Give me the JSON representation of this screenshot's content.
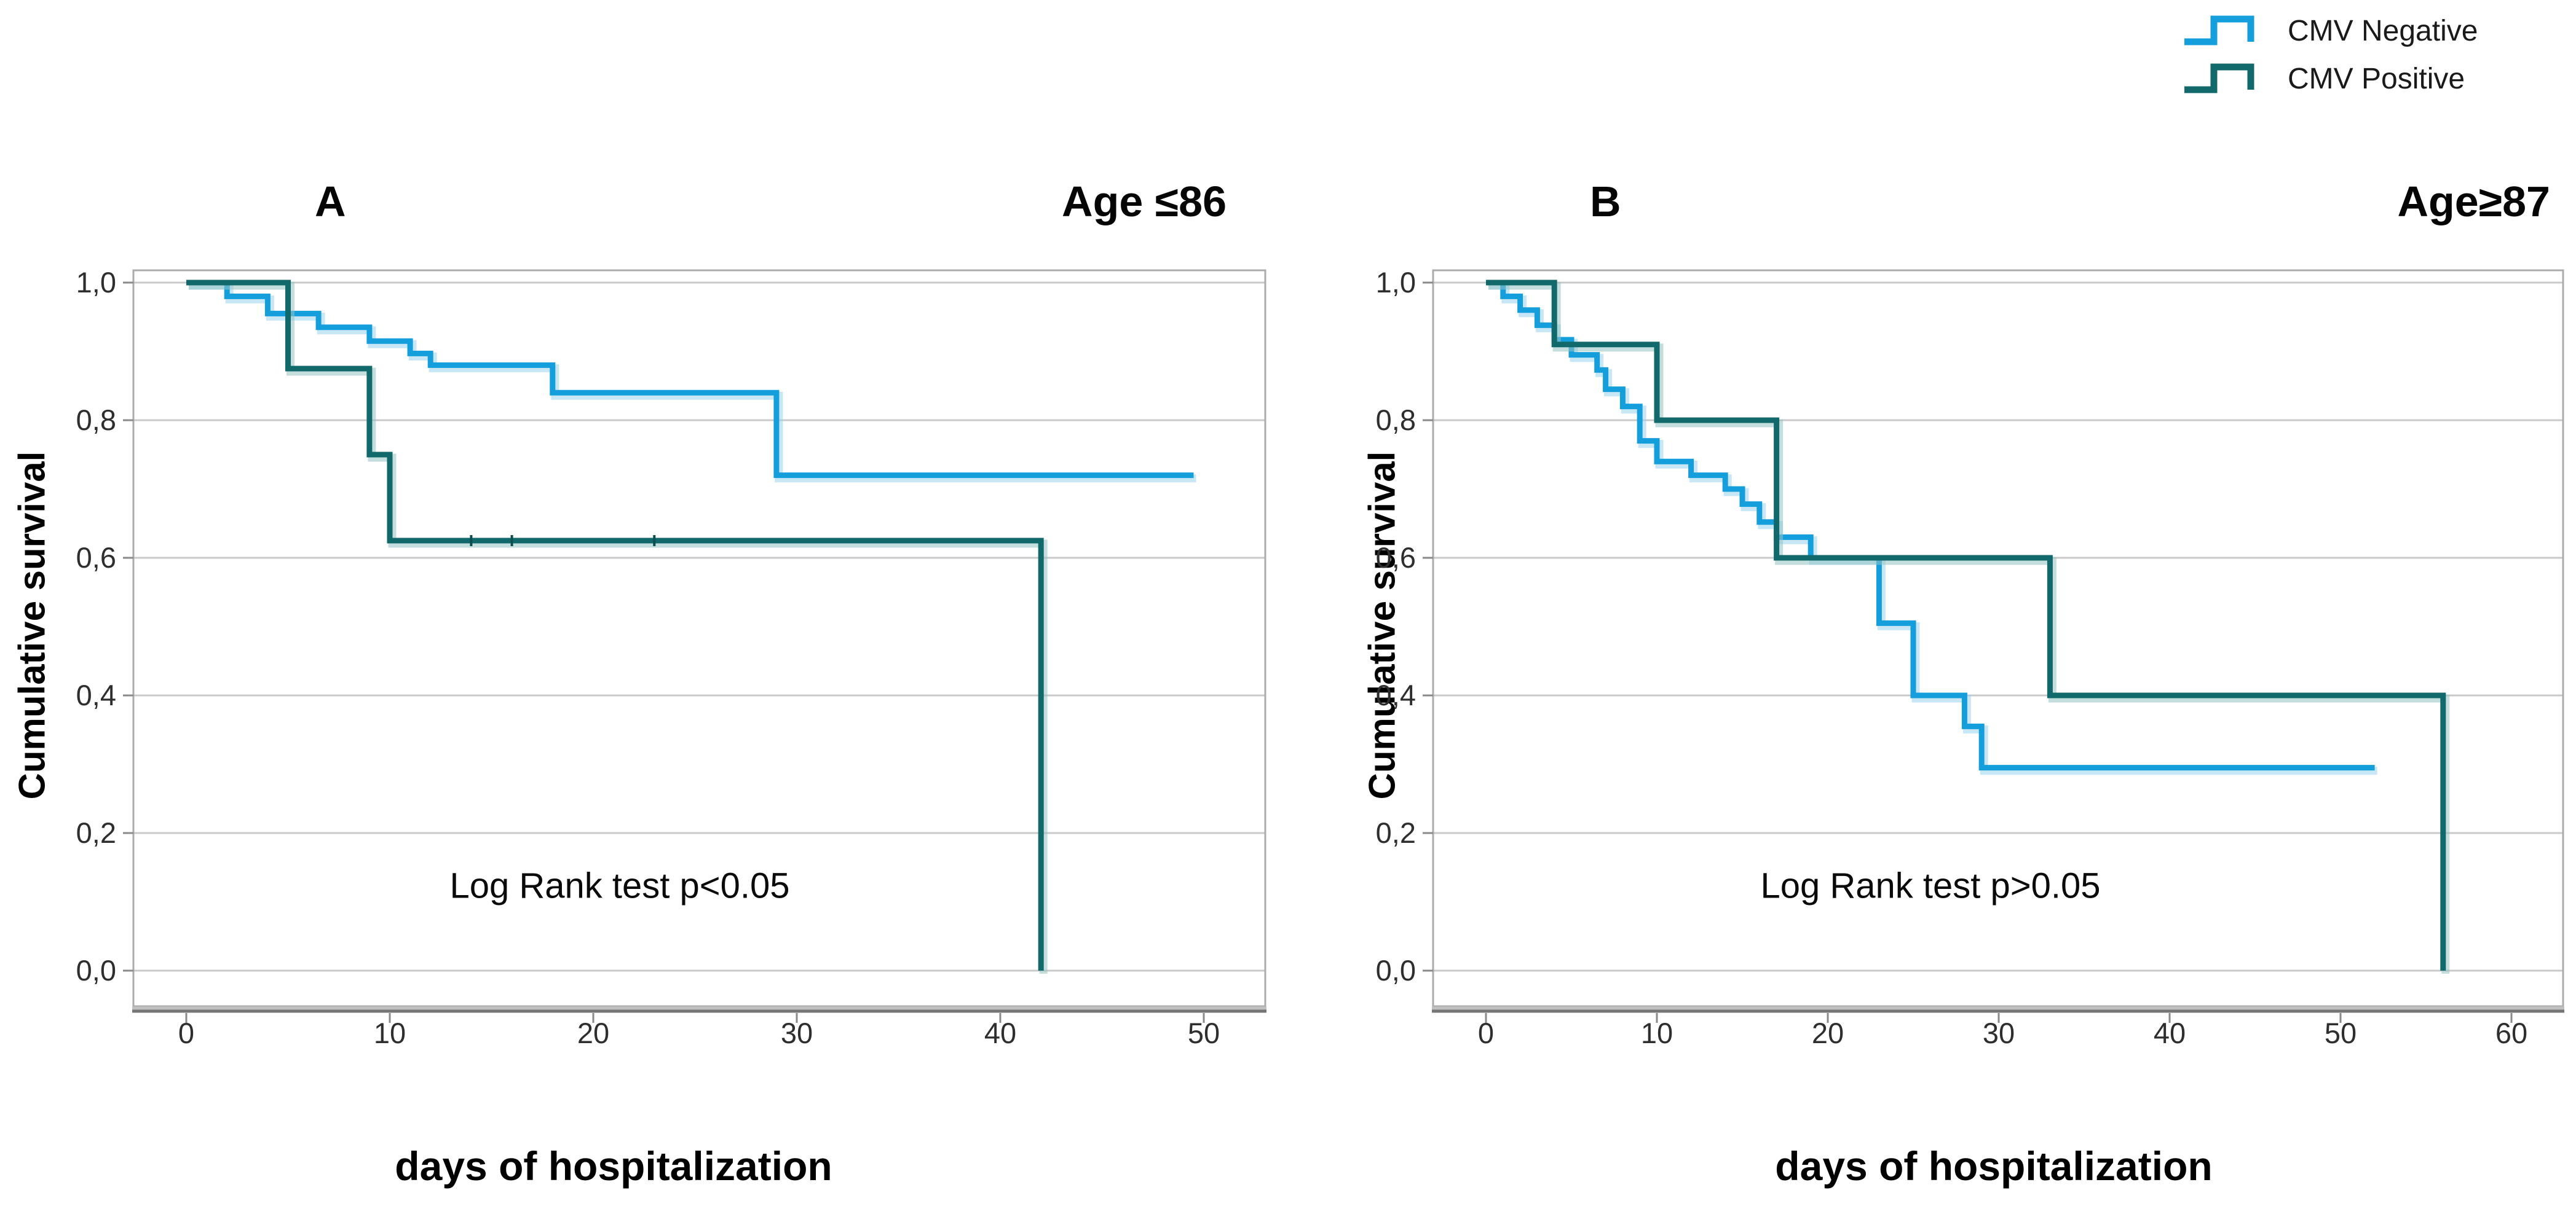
{
  "legend": {
    "items": [
      {
        "label": "CMV Negative",
        "color": "#149EDC",
        "halo": "#9bd3ee"
      },
      {
        "label": "CMV Positive",
        "color": "#11696B",
        "halo": "#93c2c3"
      }
    ]
  },
  "chart_data": [
    {
      "type": "line",
      "step": true,
      "panel_letter": "A",
      "age_label": "Age ≤86",
      "annotation": "Log Rank test p<0.05",
      "xlabel": "days of hospitalization",
      "ylabel": "Cumulative survival",
      "x_ticks": [
        0,
        10,
        20,
        30,
        40,
        50
      ],
      "y_ticks": [
        {
          "label": "1,0",
          "value": 1.0
        },
        {
          "label": "0,8",
          "value": 0.8
        },
        {
          "label": "0,6",
          "value": 0.6
        },
        {
          "label": "0,4",
          "value": 0.4
        },
        {
          "label": "0,2",
          "value": 0.2
        },
        {
          "label": "0,0",
          "value": 0.0
        }
      ],
      "xlim": [
        0,
        50
      ],
      "ylim": [
        0,
        1
      ],
      "grid": "horizontal",
      "series": [
        {
          "name": "CMV Negative",
          "color": "#149EDC",
          "halo": "#9bd3ee",
          "points": [
            [
              0,
              1.0
            ],
            [
              2,
              1.0
            ],
            [
              2,
              0.98
            ],
            [
              4,
              0.98
            ],
            [
              4,
              0.955
            ],
            [
              6.5,
              0.955
            ],
            [
              6.5,
              0.935
            ],
            [
              9,
              0.935
            ],
            [
              9,
              0.915
            ],
            [
              11,
              0.915
            ],
            [
              11,
              0.897
            ],
            [
              12,
              0.897
            ],
            [
              12,
              0.88
            ],
            [
              18,
              0.88
            ],
            [
              18,
              0.84
            ],
            [
              29,
              0.84
            ],
            [
              29,
              0.72
            ],
            [
              49.5,
              0.72
            ]
          ]
        },
        {
          "name": "CMV Positive",
          "color": "#11696B",
          "halo": "#93c2c3",
          "points": [
            [
              0,
              1.0
            ],
            [
              5,
              1.0
            ],
            [
              5,
              0.875
            ],
            [
              9,
              0.875
            ],
            [
              9,
              0.75
            ],
            [
              10,
              0.75
            ],
            [
              10,
              0.625
            ],
            [
              42,
              0.625
            ],
            [
              42,
              0.0
            ]
          ],
          "censor_marks": [
            14,
            16,
            23
          ],
          "censor_value": 0.625
        }
      ]
    },
    {
      "type": "line",
      "step": true,
      "panel_letter": "B",
      "age_label": "Age≥87",
      "annotation": "Log Rank test p>0.05",
      "xlabel": "days of hospitalization",
      "ylabel": "Cumulative survival",
      "x_ticks": [
        0,
        10,
        20,
        30,
        40,
        50,
        60
      ],
      "y_ticks": [
        {
          "label": "1,0",
          "value": 1.0
        },
        {
          "label": "0,8",
          "value": 0.8
        },
        {
          "label": "0,6",
          "value": 0.6
        },
        {
          "label": "0,4",
          "value": 0.4
        },
        {
          "label": "0,2",
          "value": 0.2
        },
        {
          "label": "0,0",
          "value": 0.0
        }
      ],
      "xlim": [
        0,
        60
      ],
      "ylim": [
        0,
        1
      ],
      "grid": "horizontal",
      "series": [
        {
          "name": "CMV Negative",
          "color": "#149EDC",
          "halo": "#9bd3ee",
          "points": [
            [
              0,
              1.0
            ],
            [
              1,
              1.0
            ],
            [
              1,
              0.98
            ],
            [
              2,
              0.98
            ],
            [
              2,
              0.96
            ],
            [
              3,
              0.96
            ],
            [
              3,
              0.938
            ],
            [
              4,
              0.938
            ],
            [
              4,
              0.917
            ],
            [
              5,
              0.917
            ],
            [
              5,
              0.895
            ],
            [
              6.5,
              0.895
            ],
            [
              6.5,
              0.873
            ],
            [
              7,
              0.873
            ],
            [
              7,
              0.845
            ],
            [
              8,
              0.845
            ],
            [
              8,
              0.82
            ],
            [
              9,
              0.82
            ],
            [
              9,
              0.77
            ],
            [
              10,
              0.77
            ],
            [
              10,
              0.74
            ],
            [
              12,
              0.74
            ],
            [
              12,
              0.72
            ],
            [
              14,
              0.72
            ],
            [
              14,
              0.7
            ],
            [
              15,
              0.7
            ],
            [
              15,
              0.678
            ],
            [
              16,
              0.678
            ],
            [
              16,
              0.652
            ],
            [
              17,
              0.652
            ],
            [
              17,
              0.63
            ],
            [
              19,
              0.63
            ],
            [
              19,
              0.6
            ],
            [
              23,
              0.6
            ],
            [
              23,
              0.505
            ],
            [
              25,
              0.505
            ],
            [
              25,
              0.4
            ],
            [
              28,
              0.4
            ],
            [
              28,
              0.355
            ],
            [
              29,
              0.355
            ],
            [
              29,
              0.295
            ],
            [
              52,
              0.295
            ]
          ]
        },
        {
          "name": "CMV Positive",
          "color": "#11696B",
          "halo": "#93c2c3",
          "points": [
            [
              0,
              1.0
            ],
            [
              4,
              1.0
            ],
            [
              4,
              0.91
            ],
            [
              10,
              0.91
            ],
            [
              10,
              0.8
            ],
            [
              17,
              0.8
            ],
            [
              17,
              0.6
            ],
            [
              33,
              0.6
            ],
            [
              33,
              0.4
            ],
            [
              56,
              0.4
            ],
            [
              56,
              0.0
            ]
          ]
        }
      ]
    }
  ],
  "style": {
    "gridline_color": "#c9c9c9",
    "frame_color": "#acacac",
    "axis_shadow_light": "#c0c0c0",
    "axis_shadow_dark": "#757575",
    "tick_color": "#8a8a8a",
    "tick_label_color": "#2e2e2e"
  }
}
